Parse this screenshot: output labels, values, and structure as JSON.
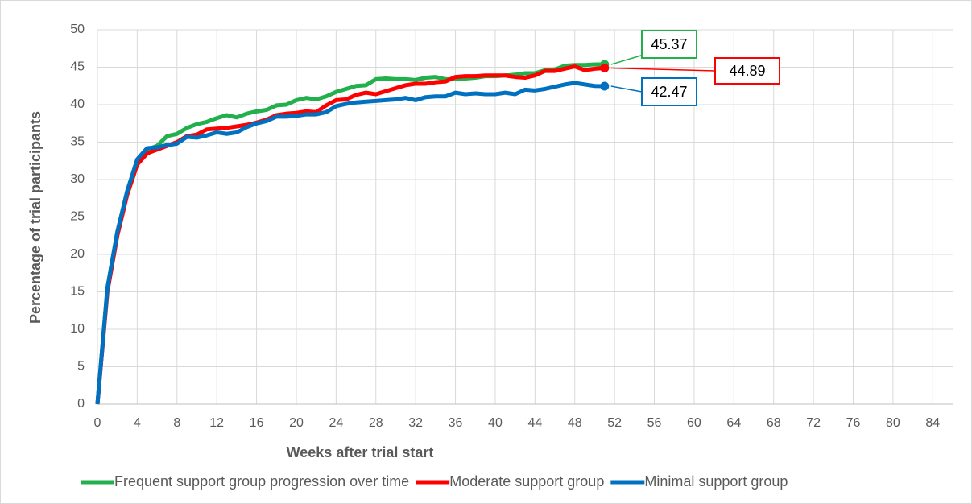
{
  "chart_data": {
    "type": "line",
    "x_label": "Weeks after trial start",
    "y_label": "Percentage of trial participants",
    "x": [
      0,
      1,
      2,
      3,
      4,
      5,
      6,
      7,
      8,
      9,
      10,
      11,
      12,
      13,
      14,
      15,
      16,
      17,
      18,
      19,
      20,
      21,
      22,
      23,
      24,
      25,
      26,
      27,
      28,
      29,
      30,
      31,
      32,
      33,
      34,
      35,
      36,
      37,
      38,
      39,
      40,
      41,
      42,
      43,
      44,
      45,
      46,
      47,
      48,
      49,
      50,
      51
    ],
    "series": [
      {
        "name": "Frequent support group progression over time",
        "color": "#21b04b",
        "values": [
          0,
          15.5,
          23,
          28.5,
          32.5,
          34,
          34.5,
          35.8,
          36.1,
          36.9,
          37.4,
          37.7,
          38.2,
          38.6,
          38.3,
          38.8,
          39.1,
          39.3,
          39.9,
          40,
          40.6,
          40.9,
          40.7,
          41.1,
          41.7,
          42.1,
          42.5,
          42.6,
          43.4,
          43.5,
          43.4,
          43.4,
          43.3,
          43.6,
          43.7,
          43.4,
          43.4,
          43.5,
          43.6,
          43.8,
          43.8,
          43.9,
          44,
          44.2,
          44.2,
          44.6,
          44.7,
          45.2,
          45.3,
          45.3,
          45.37,
          45.37
        ]
      },
      {
        "name": "Moderate support group",
        "color": "#ff0000",
        "values": [
          0,
          15,
          22.5,
          28,
          32,
          33.5,
          34,
          34.5,
          35,
          35.8,
          36,
          36.7,
          36.8,
          36.9,
          37.1,
          37.3,
          37.6,
          38,
          38.6,
          38.8,
          38.9,
          39.1,
          39,
          39.9,
          40.6,
          40.7,
          41.3,
          41.6,
          41.4,
          41.8,
          42.2,
          42.6,
          42.8,
          42.8,
          43,
          43.1,
          43.7,
          43.8,
          43.8,
          43.9,
          43.9,
          43.9,
          43.7,
          43.6,
          43.9,
          44.5,
          44.5,
          44.8,
          45.1,
          44.6,
          44.8,
          44.89
        ]
      },
      {
        "name": "Minimal support group",
        "color": "#0070c0",
        "values": [
          0,
          15.5,
          23,
          28.5,
          32.7,
          34.2,
          34.3,
          34.6,
          34.8,
          35.7,
          35.6,
          35.9,
          36.3,
          36.1,
          36.3,
          37,
          37.5,
          37.8,
          38.4,
          38.4,
          38.5,
          38.7,
          38.7,
          39,
          39.8,
          40.1,
          40.3,
          40.4,
          40.5,
          40.6,
          40.7,
          40.9,
          40.6,
          41,
          41.1,
          41.1,
          41.6,
          41.4,
          41.5,
          41.4,
          41.4,
          41.6,
          41.4,
          42,
          41.9,
          42.1,
          42.4,
          42.7,
          42.9,
          42.7,
          42.5,
          42.47
        ]
      }
    ],
    "annotations": [
      {
        "text": "45.37",
        "x": 51,
        "y": 45.37,
        "color": "#21b04b"
      },
      {
        "text": "44.89",
        "x": 51,
        "y": 44.89,
        "color": "#ff0000"
      },
      {
        "text": "42.47",
        "x": 51,
        "y": 42.47,
        "color": "#0070c0"
      }
    ],
    "xlim": [
      0,
      86
    ],
    "xticks": [
      0,
      4,
      8,
      12,
      16,
      20,
      24,
      28,
      32,
      36,
      40,
      44,
      48,
      52,
      56,
      60,
      64,
      68,
      72,
      76,
      80,
      84
    ],
    "ylim": [
      0,
      50
    ],
    "yticks": [
      0,
      5,
      10,
      15,
      20,
      25,
      30,
      35,
      40,
      45,
      50
    ],
    "grid": true,
    "legend": "bottom"
  }
}
